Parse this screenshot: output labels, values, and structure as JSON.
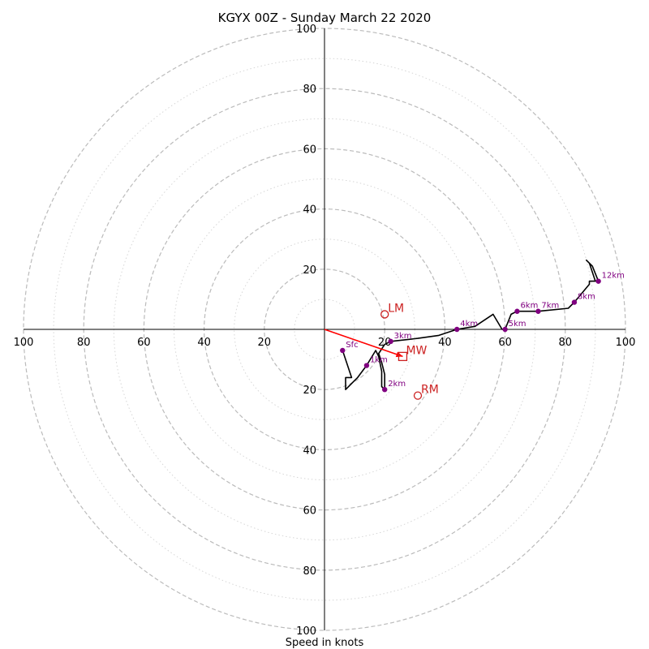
{
  "chart_data": {
    "type": "hodograph",
    "title": "KGYX 00Z - Sunday March 22 2020",
    "xlabel": "Speed in knots",
    "max_speed": 100,
    "ring_step_dashed": 20,
    "ring_step_dotted": 10,
    "tick_labels": [
      "20",
      "40",
      "60",
      "80",
      "100"
    ],
    "grid": true,
    "colors": {
      "trace": "#000000",
      "height_markers": "#800080",
      "motion": "#cc2222",
      "mean_wind_vector": "#ff0000",
      "grid": "#bbbbbb"
    },
    "trace": [
      [
        6,
        -7
      ],
      [
        9,
        -16
      ],
      [
        7,
        -16
      ],
      [
        7,
        -20
      ],
      [
        10,
        -17
      ],
      [
        11,
        -16
      ],
      [
        14,
        -12
      ],
      [
        17,
        -7
      ],
      [
        18,
        -9
      ],
      [
        19,
        -14
      ],
      [
        19,
        -19
      ],
      [
        20,
        -20
      ],
      [
        20,
        -15
      ],
      [
        19,
        -11
      ],
      [
        18,
        -8
      ],
      [
        20,
        -5
      ],
      [
        22,
        -4
      ],
      [
        31,
        -3
      ],
      [
        38,
        -2
      ],
      [
        44,
        0
      ],
      [
        50,
        1
      ],
      [
        56,
        5
      ],
      [
        59,
        0
      ],
      [
        60,
        0
      ],
      [
        62,
        5
      ],
      [
        64,
        6
      ],
      [
        71,
        6
      ],
      [
        81,
        7
      ],
      [
        83,
        9
      ],
      [
        88,
        15
      ],
      [
        88,
        16
      ],
      [
        90,
        16
      ],
      [
        88,
        22
      ],
      [
        87,
        23
      ],
      [
        89,
        21
      ],
      [
        91,
        16
      ]
    ],
    "height_markers": [
      {
        "label": "Sfc",
        "u": 6,
        "v": -7
      },
      {
        "label": "1km",
        "u": 14,
        "v": -12
      },
      {
        "label": "2km",
        "u": 20,
        "v": -20
      },
      {
        "label": "3km",
        "u": 22,
        "v": -4
      },
      {
        "label": "4km",
        "u": 44,
        "v": 0
      },
      {
        "label": "5km",
        "u": 60,
        "v": 0
      },
      {
        "label": "6km",
        "u": 64,
        "v": 6
      },
      {
        "label": "7km",
        "u": 71,
        "v": 6
      },
      {
        "label": "8km",
        "u": 83,
        "v": 9
      },
      {
        "label": "12km",
        "u": 91,
        "v": 16
      }
    ],
    "storm_motions": [
      {
        "label": "LM",
        "u": 20,
        "v": 5,
        "marker": "circle"
      },
      {
        "label": "RM",
        "u": 31,
        "v": -22,
        "marker": "circle"
      },
      {
        "label": "MW",
        "u": 26,
        "v": -9,
        "marker": "square"
      }
    ]
  }
}
